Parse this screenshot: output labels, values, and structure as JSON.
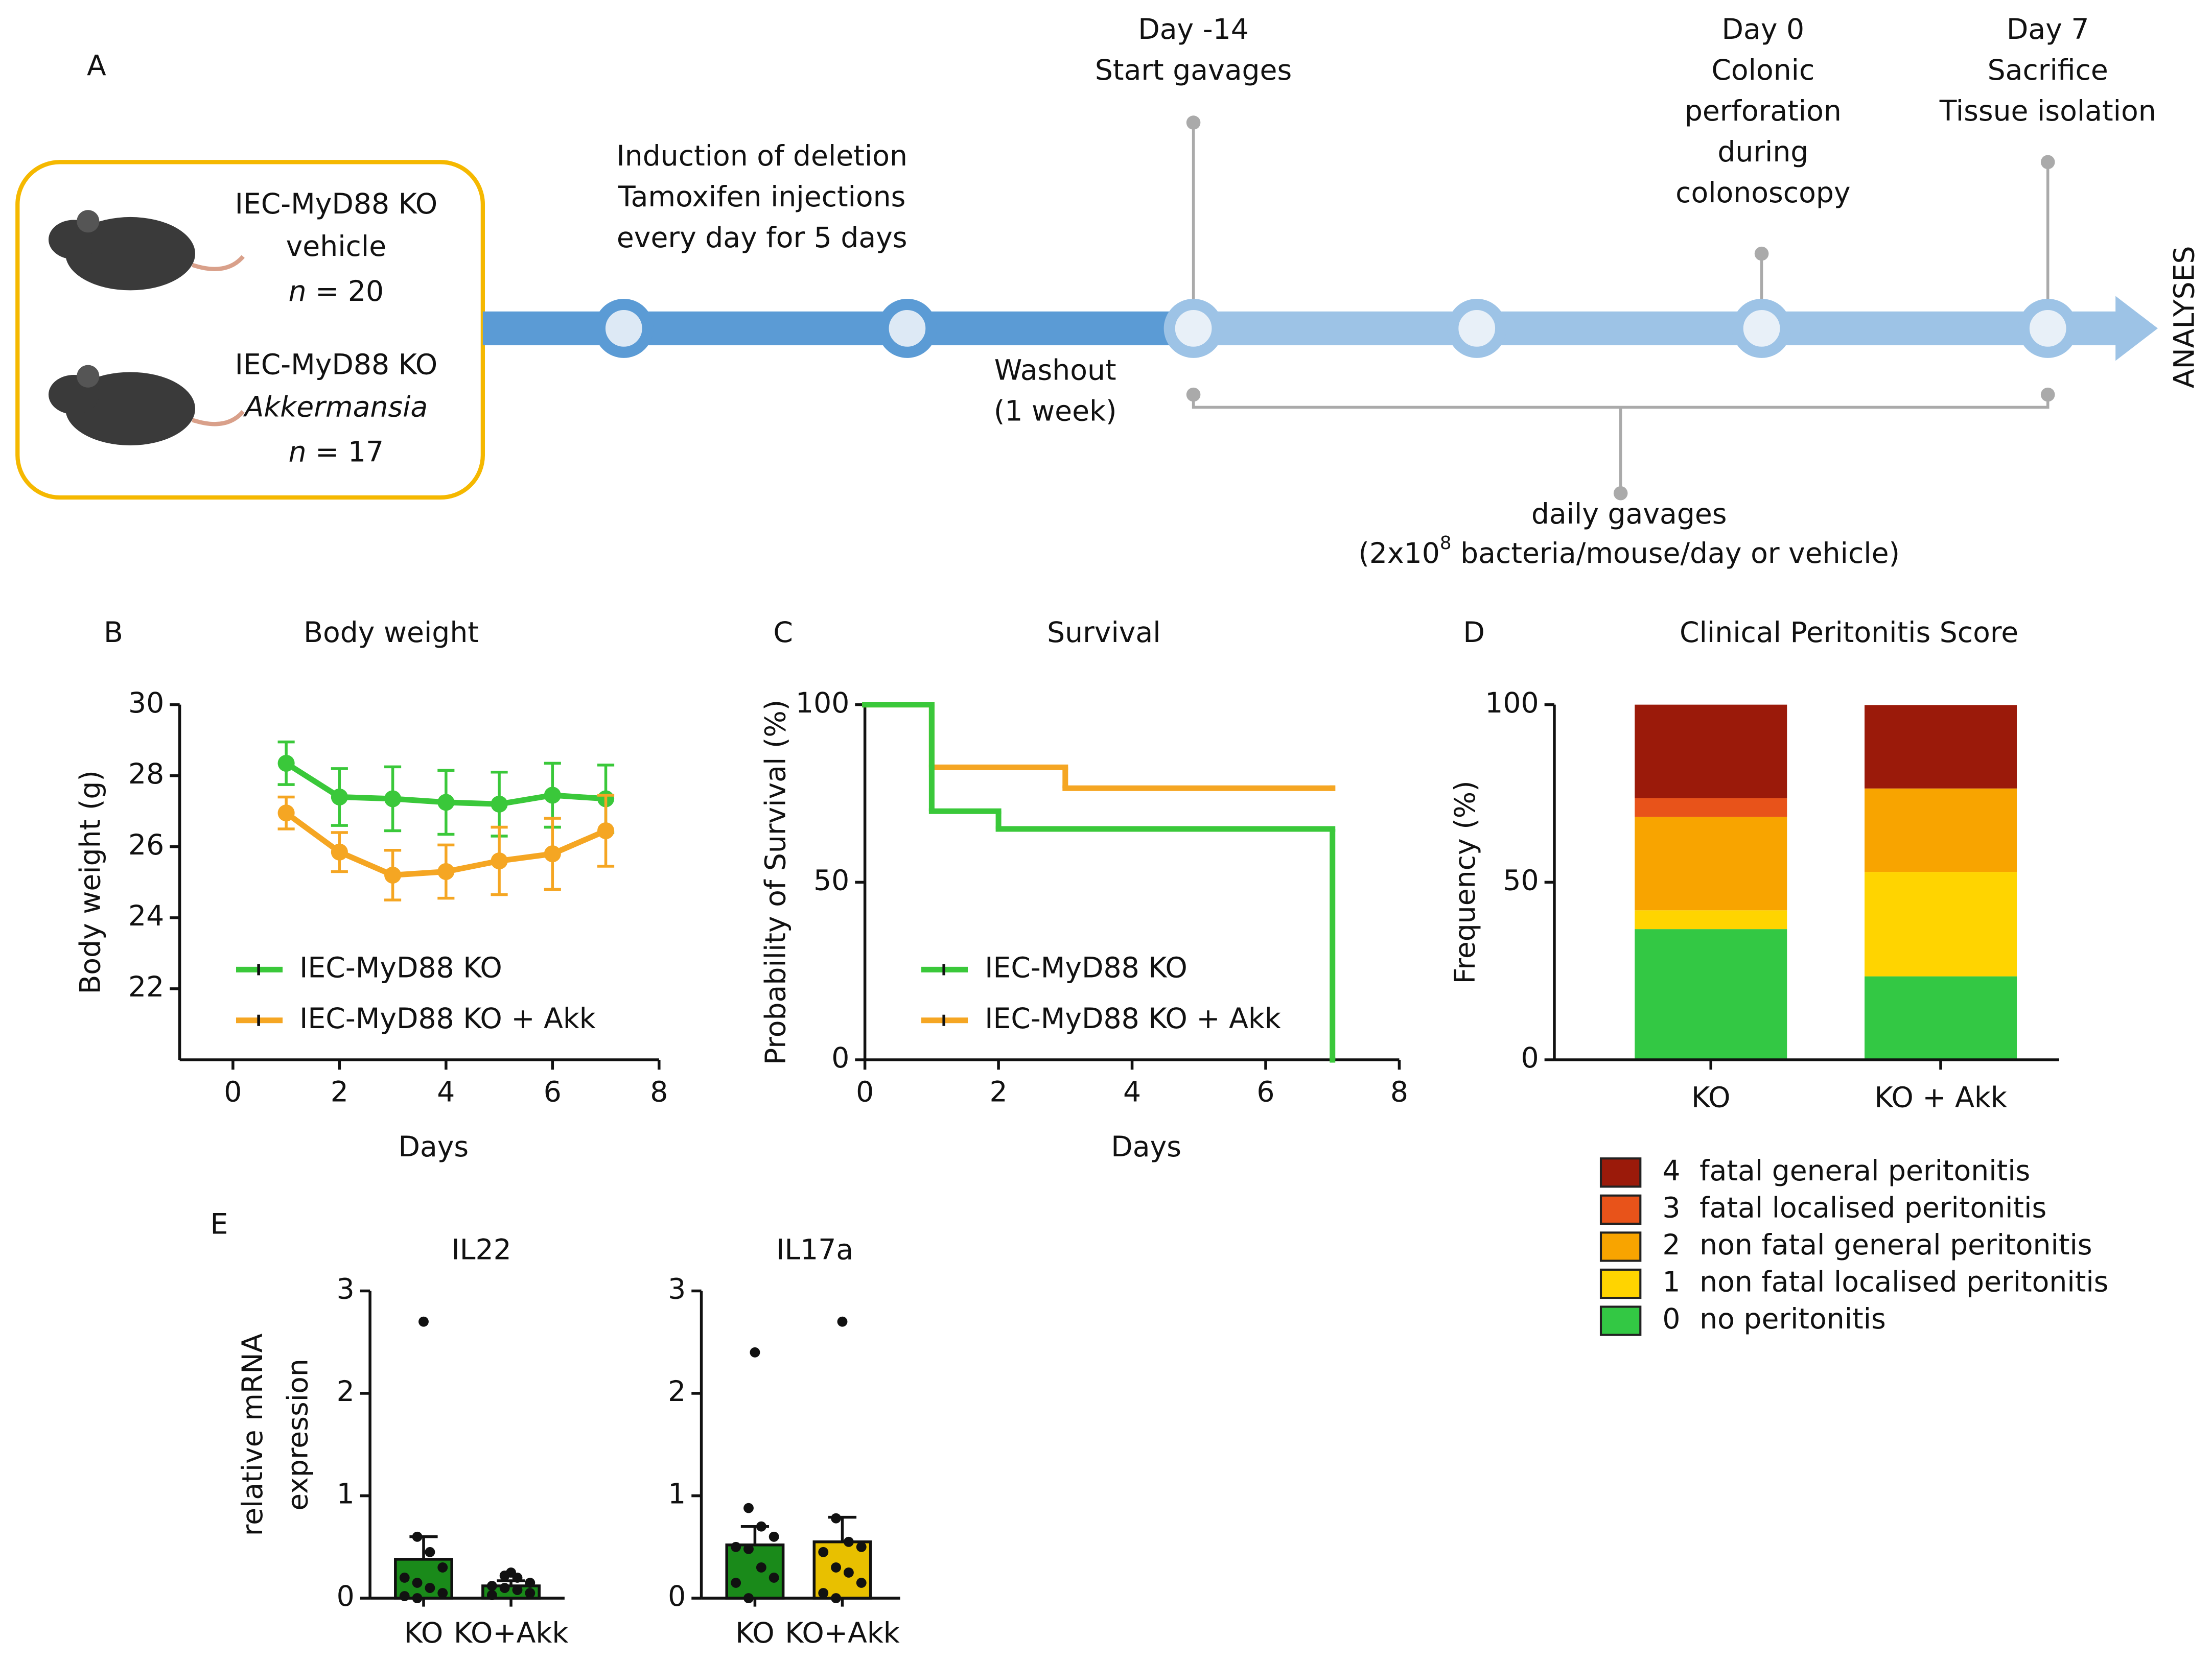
{
  "panel_a": {
    "label": "A",
    "groups": [
      {
        "name": "IEC-MyD88 KO",
        "treatment": "vehicle",
        "italic": false,
        "color": "#5a8a2a",
        "n_symbol": "n",
        "n_rest": " = 20"
      },
      {
        "name": "IEC-MyD88 KO",
        "treatment": "Akkermansia",
        "italic": true,
        "color": "#f5a800",
        "n_symbol": "n",
        "n_rest": " = 17"
      }
    ],
    "timeline": {
      "induction": [
        "Induction of deletion",
        "Tamoxifen injections",
        "every day for 5 days"
      ],
      "washout": [
        "Washout",
        "(1 week)"
      ],
      "day_minus14": [
        "Day -14",
        "Start gavages"
      ],
      "day0": [
        "Day 0",
        "Colonic",
        "perforation",
        "during",
        "colonoscopy"
      ],
      "day7": [
        "Day 7",
        "Sacrifice",
        "Tissue isolation"
      ],
      "end": "ANALYSES",
      "gavage": {
        "line1": "daily gavages",
        "base": "(2x10",
        "sup": "8",
        "rest": " bacteria/mouse/day or vehicle)"
      }
    }
  },
  "chart_data": [
    {
      "type": "line",
      "panel": "B",
      "title": "Body weight",
      "xlabel": "Days",
      "ylabel": "Body weight (g)",
      "xlim": [
        -1,
        8
      ],
      "xticks": [
        0,
        2,
        4,
        6,
        8
      ],
      "ylim": [
        20,
        30
      ],
      "yticks": [
        22,
        24,
        26,
        28,
        30
      ],
      "series": [
        {
          "name": "IEC-MyD88 KO",
          "color": "#3ac83a",
          "x": [
            1,
            2,
            3,
            4,
            5,
            6,
            7
          ],
          "values": [
            28.35,
            27.4,
            27.35,
            27.25,
            27.2,
            27.45,
            27.35
          ],
          "errors": [
            0.6,
            0.8,
            0.9,
            0.9,
            0.9,
            0.9,
            0.95
          ]
        },
        {
          "name": "IEC-MyD88 KO + Akk",
          "color": "#f5a623",
          "x": [
            1,
            2,
            3,
            4,
            5,
            6,
            7
          ],
          "values": [
            26.95,
            25.85,
            25.2,
            25.3,
            25.6,
            25.8,
            26.45
          ],
          "errors": [
            0.45,
            0.55,
            0.7,
            0.75,
            0.95,
            1.0,
            1.0
          ]
        }
      ]
    },
    {
      "type": "survival",
      "panel": "C",
      "title": "Survival",
      "xlabel": "Days",
      "ylabel": "Probability of Survival (%)",
      "xlim": [
        0,
        8
      ],
      "xticks": [
        0,
        2,
        4,
        6,
        8
      ],
      "ylim": [
        0,
        100
      ],
      "yticks": [
        0,
        50,
        100
      ],
      "series": [
        {
          "name": "IEC-MyD88 KO",
          "color": "#3ac83a",
          "x": [
            0,
            1,
            2,
            7
          ],
          "values": [
            100,
            70,
            65,
            0
          ]
        },
        {
          "name": "IEC-MyD88 KO + Akk",
          "color": "#f5a623",
          "x": [
            0,
            1,
            3,
            7
          ],
          "values": [
            100,
            82.35,
            76.47,
            76.47
          ]
        }
      ]
    },
    {
      "type": "stacked_bar",
      "panel": "D",
      "title": "Clinical Peritonitis Score",
      "ylabel": "Frequency (%)",
      "categories": [
        "KO",
        "KO + Akk"
      ],
      "ylim": [
        0,
        100
      ],
      "yticks": [
        0,
        50,
        100
      ],
      "series": [
        {
          "score": 0,
          "name": "no peritonitis",
          "color": "#33c844",
          "values": [
            36.8,
            23.5
          ]
        },
        {
          "score": 1,
          "name": "non fatal localised peritonitis",
          "color": "#ffd400",
          "values": [
            5.3,
            29.4
          ]
        },
        {
          "score": 2,
          "name": "non fatal general peritonitis",
          "color": "#f8a400",
          "values": [
            26.3,
            23.5
          ]
        },
        {
          "score": 3,
          "name": "fatal localised peritonitis",
          "color": "#e8531a",
          "values": [
            5.3,
            0
          ]
        },
        {
          "score": 4,
          "name": "fatal general peritonitis",
          "color": "#9b1a0a",
          "values": [
            26.3,
            23.5
          ]
        }
      ]
    },
    {
      "type": "dot_bar",
      "panel": "E",
      "title": "IL22",
      "ylabel": [
        "relative mRNA",
        "expression"
      ],
      "categories": [
        "KO",
        "KO+Akk"
      ],
      "ylim": [
        0,
        3
      ],
      "yticks": [
        0,
        1,
        2,
        3
      ],
      "values": [
        0.38,
        0.12
      ],
      "errors": [
        0.22,
        0.05
      ],
      "colors": [
        "#1a8a1a",
        "#1a8a1a"
      ],
      "points": [
        [
          2.7,
          0.6,
          0.45,
          0.3,
          0.2,
          0.15,
          0.1,
          0.05,
          0.02,
          0.0
        ],
        [
          0.25,
          0.22,
          0.2,
          0.15,
          0.12,
          0.1,
          0.08,
          0.05,
          0.03
        ]
      ]
    },
    {
      "type": "dot_bar",
      "title": "IL17a",
      "categories": [
        "KO",
        "KO+Akk"
      ],
      "ylim": [
        0,
        3
      ],
      "yticks": [
        0,
        1,
        2,
        3
      ],
      "values": [
        0.52,
        0.55
      ],
      "errors": [
        0.18,
        0.24
      ],
      "colors": [
        "#1a8a1a",
        "#e8c000"
      ],
      "points": [
        [
          2.4,
          0.88,
          0.7,
          0.6,
          0.5,
          0.48,
          0.3,
          0.2,
          0.15,
          0.0
        ],
        [
          2.7,
          0.78,
          0.55,
          0.5,
          0.45,
          0.3,
          0.25,
          0.15,
          0.05,
          0.0
        ]
      ]
    }
  ]
}
